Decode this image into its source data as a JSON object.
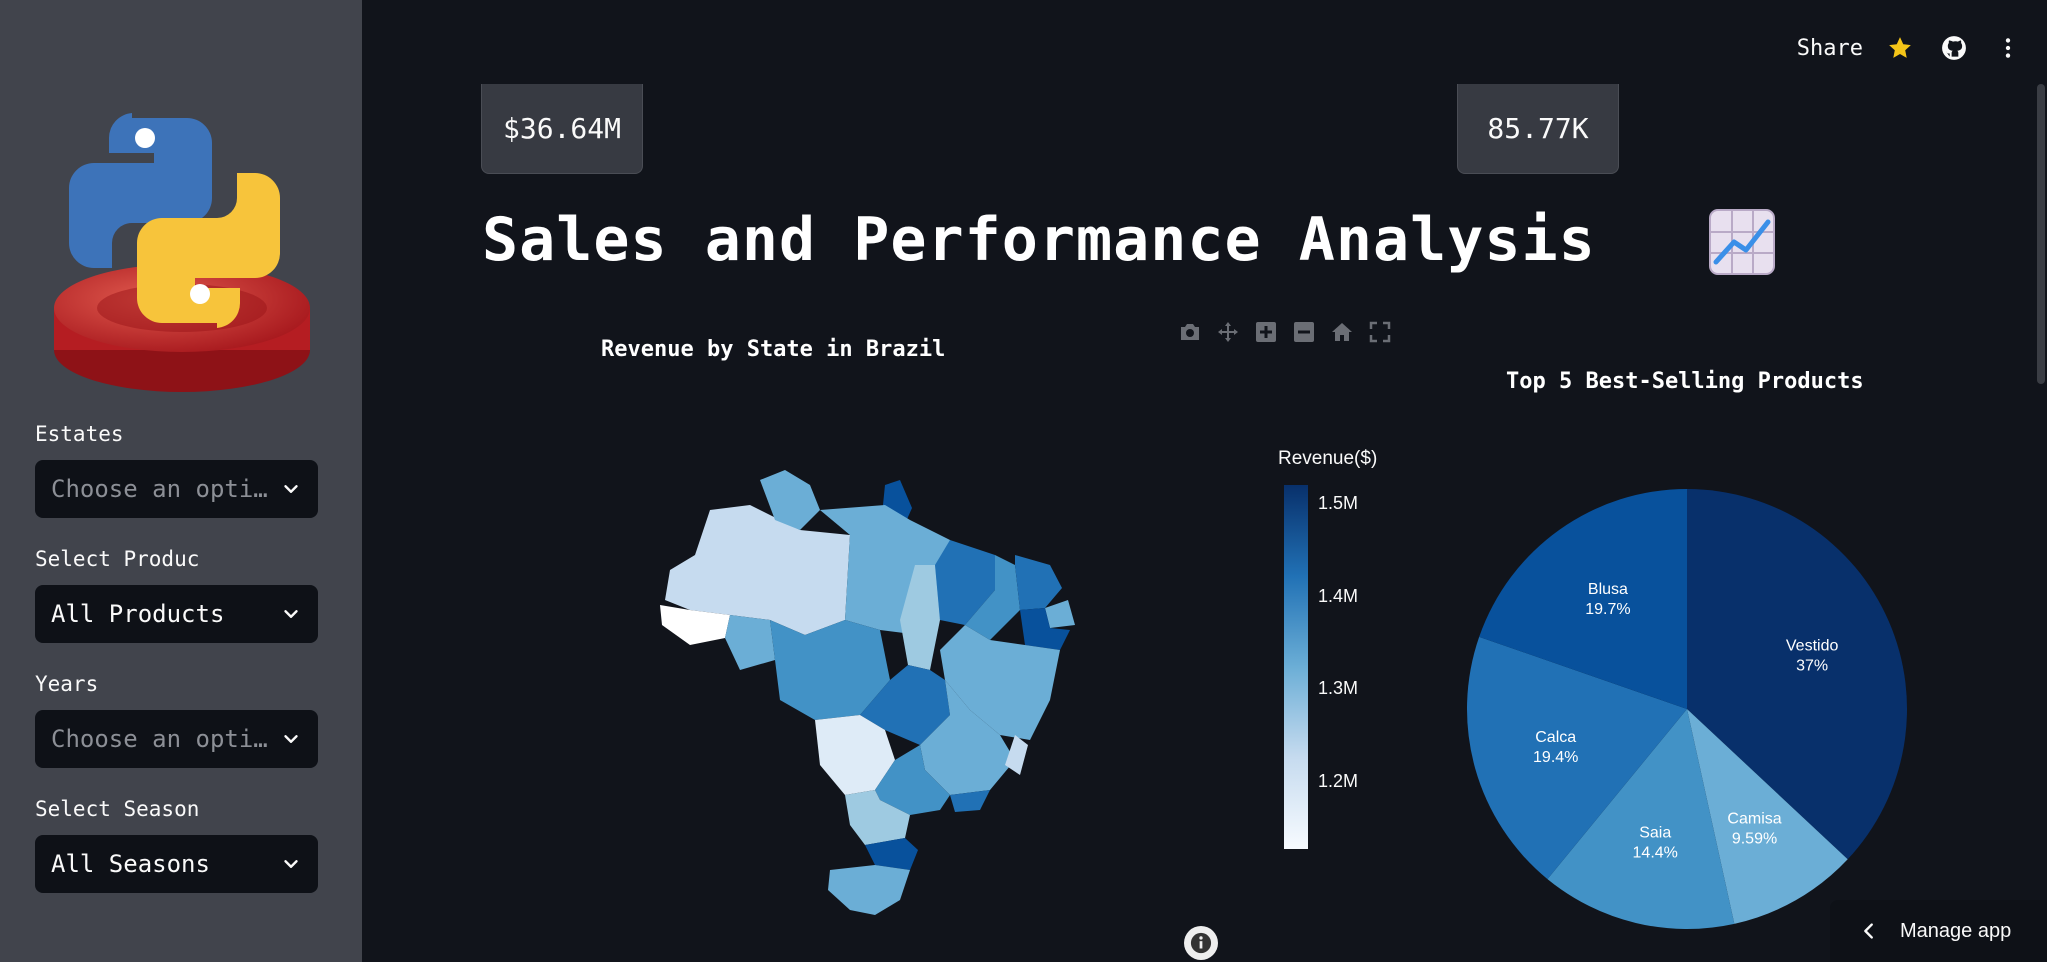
{
  "sidebar": {
    "logo_icon": "python-logo-icon",
    "filters": [
      {
        "label": "Estates",
        "value": "Choose an opti…",
        "is_placeholder": true
      },
      {
        "label": "Select Produc",
        "value": "All Products",
        "is_placeholder": false
      },
      {
        "label": "Years",
        "value": "Choose an opti…",
        "is_placeholder": true
      },
      {
        "label": "Select Season",
        "value": "All Seasons",
        "is_placeholder": false
      }
    ]
  },
  "header": {
    "share_label": "Share",
    "icons": [
      "star-icon",
      "github-icon",
      "more-vertical-icon"
    ],
    "star_color": "#f5c518"
  },
  "metrics": [
    {
      "value": "$36.64M"
    },
    {
      "value": "85.77K"
    }
  ],
  "page_title": "Sales and Performance Analysis",
  "title_emoji": "chart-increasing-icon",
  "map_chart": {
    "title": "Revenue by State in Brazil",
    "colorbar_title": "Revenue($)",
    "colorbar_ticks": [
      "1.5M",
      "1.4M",
      "1.3M",
      "1.2M"
    ],
    "modebar_icons": [
      "camera-icon",
      "pan-icon",
      "zoom-in-icon",
      "zoom-out-icon",
      "home-icon",
      "fullscreen-icon"
    ]
  },
  "chart_data": [
    {
      "type": "heatmap",
      "title": "Revenue by State in Brazil",
      "colorbar_title": "Revenue($)",
      "colorbar_range": [
        1.15,
        1.55
      ],
      "colorbar_unit": "M",
      "colorbar_ticks": [
        1.2,
        1.3,
        1.4,
        1.5
      ],
      "colorscale": [
        "#f7fbff",
        "#c6dbef",
        "#6baed6",
        "#2171b5",
        "#08306b"
      ]
    },
    {
      "type": "pie",
      "title": "Top 5 Best-Selling Products",
      "slices": [
        {
          "label": "Vestido",
          "percent_label": "37%",
          "value": 37.0,
          "color": "#08306b"
        },
        {
          "label": "Camisa",
          "percent_label": "9.59%",
          "value": 9.59,
          "color": "#6baed6"
        },
        {
          "label": "Saia",
          "percent_label": "14.4%",
          "value": 14.4,
          "color": "#4292c6"
        },
        {
          "label": "Calca",
          "percent_label": "19.4%",
          "value": 19.4,
          "color": "#2171b5"
        },
        {
          "label": "Blusa",
          "percent_label": "19.7%",
          "value": 19.7,
          "color": "#08519c"
        }
      ]
    }
  ],
  "footer": {
    "manage_label": "Manage app"
  }
}
